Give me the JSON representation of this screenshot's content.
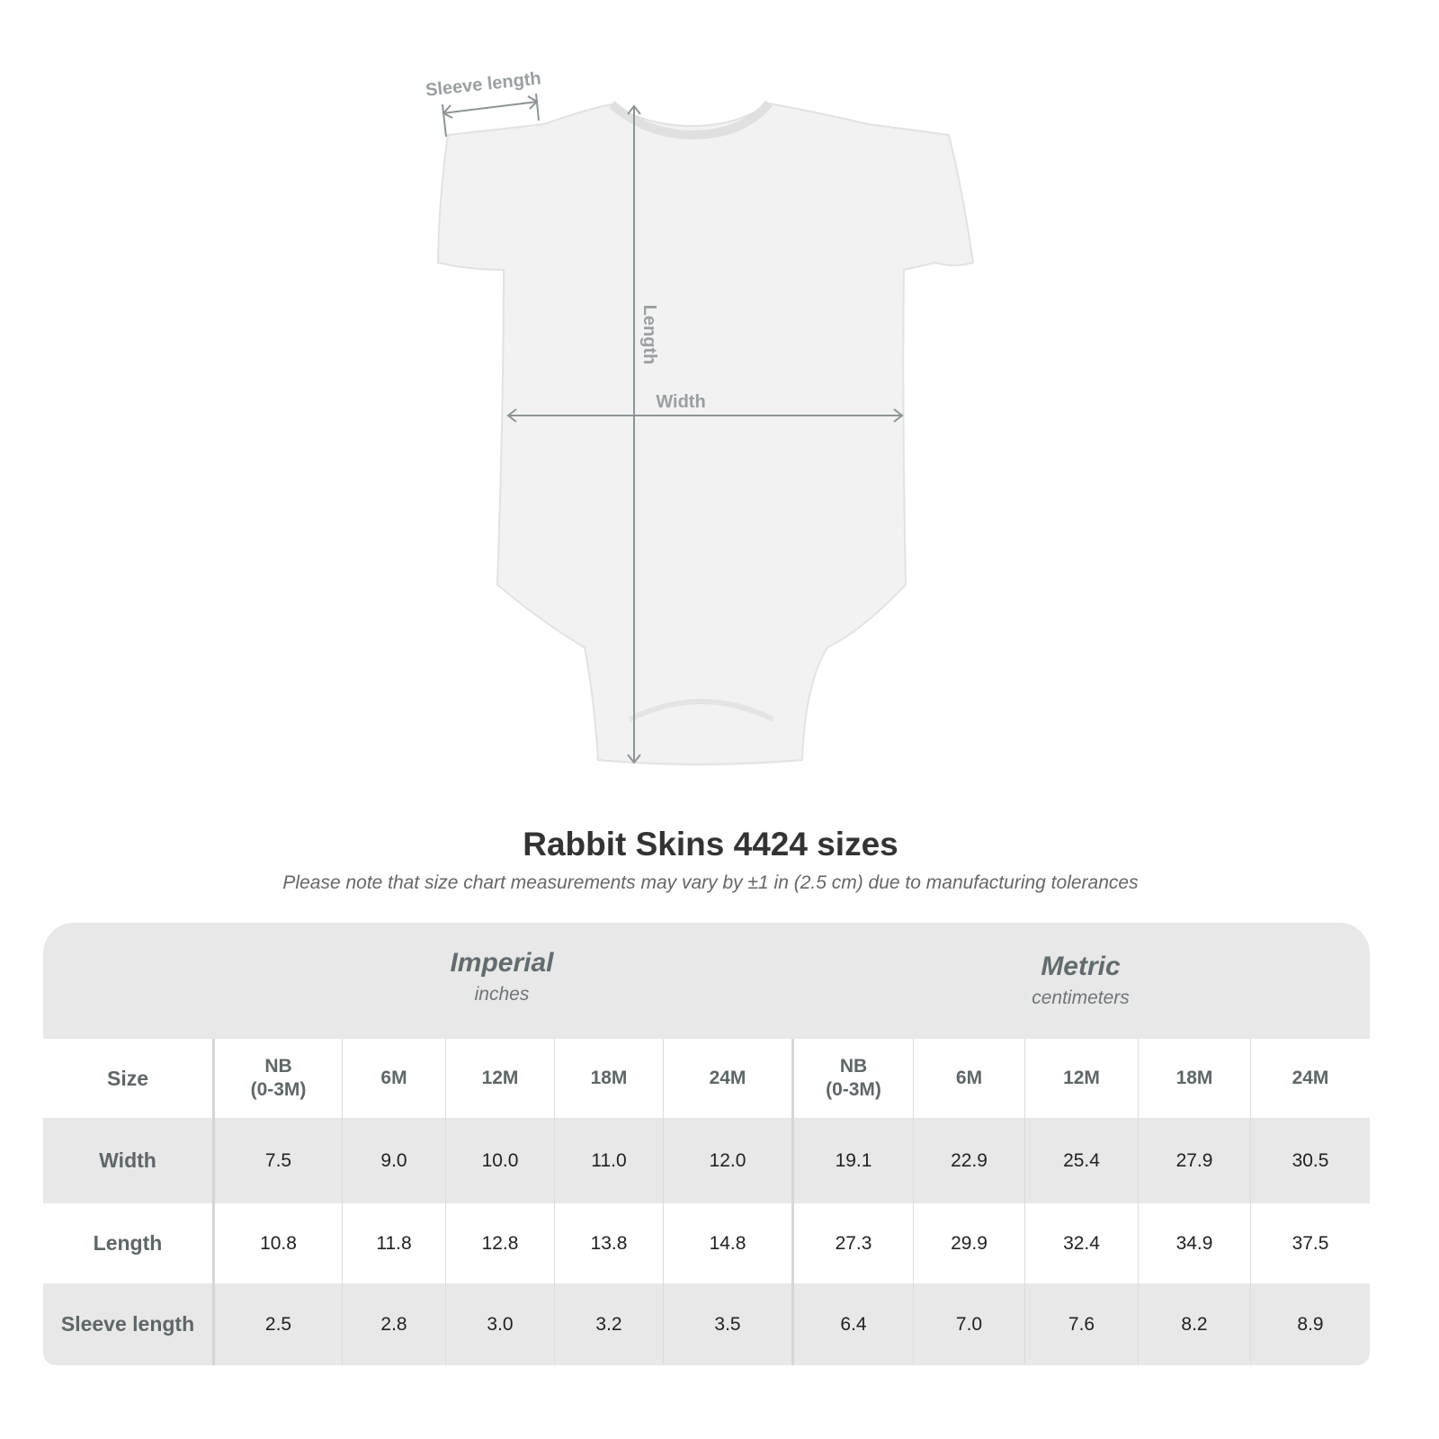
{
  "diagram": {
    "labels": {
      "sleeve": "Sleeve length",
      "length": "Length",
      "width": "Width"
    },
    "garment_color": "#f2f2f2",
    "arrow_color": "#8e9496"
  },
  "title": "Rabbit Skins 4424 sizes",
  "note": "Please note that size chart measurements may vary by ±1 in (2.5 cm) due to manufacturing tolerances",
  "table": {
    "imperial": {
      "heading": "Imperial",
      "unit": "inches"
    },
    "metric": {
      "heading": "Metric",
      "unit": "centimeters"
    },
    "size_label": "Size",
    "sizes": [
      "NB\n(0-3M)",
      "6M",
      "12M",
      "18M",
      "24M",
      "NB\n(0-3M)",
      "6M",
      "12M",
      "18M",
      "24M"
    ],
    "rows": [
      {
        "label": "Width",
        "values": [
          "7.5",
          "9.0",
          "10.0",
          "11.0",
          "12.0",
          "19.1",
          "22.9",
          "25.4",
          "27.9",
          "30.5"
        ]
      },
      {
        "label": "Length",
        "values": [
          "10.8",
          "11.8",
          "12.8",
          "13.8",
          "14.8",
          "27.3",
          "29.9",
          "32.4",
          "34.9",
          "37.5"
        ]
      },
      {
        "label": "Sleeve length",
        "values": [
          "2.5",
          "2.8",
          "3.0",
          "3.2",
          "3.5",
          "6.4",
          "7.0",
          "7.6",
          "8.2",
          "8.9"
        ]
      }
    ]
  }
}
